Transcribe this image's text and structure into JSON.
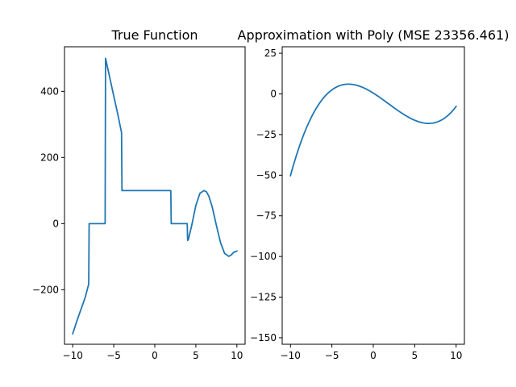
{
  "line_color": "#1f77b4",
  "chart_data": [
    {
      "type": "line",
      "title": "True Function",
      "xlim": [
        -11,
        11
      ],
      "ylim": [
        -365,
        535
      ],
      "xticks": [
        -10,
        -5,
        0,
        5,
        10
      ],
      "xtick_labels": [
        "−10",
        "−5",
        "0",
        "5",
        "10"
      ],
      "yticks": [
        -200,
        0,
        200,
        400
      ],
      "ytick_labels": [
        "−200",
        "0",
        "200",
        "400"
      ],
      "grid": false,
      "series": [
        {
          "x": [
            -10,
            -9.5,
            -9,
            -8.5,
            -8.05,
            -8.0,
            -7.5,
            -7,
            -6.5,
            -6.05,
            -6.0,
            -5.5,
            -5,
            -4.5,
            -4.05,
            -4.0,
            -3,
            -2,
            -1,
            0,
            1,
            1.95,
            2.0,
            2.5,
            3,
            3.5,
            3.95,
            4.0,
            4.1,
            4.5,
            5,
            5.5,
            6,
            6.3,
            6.6,
            7,
            7.5,
            8,
            8.5,
            9,
            9.3,
            9.6,
            10
          ],
          "y": [
            -333,
            -295,
            -260,
            -225,
            -183,
            0,
            0,
            0,
            0,
            0,
            500,
            443,
            386,
            330,
            275,
            100,
            100,
            100,
            100,
            100,
            100,
            100,
            0,
            0,
            0,
            0,
            0,
            -51,
            -47,
            -5,
            55,
            92,
            100,
            96,
            82,
            50,
            -5,
            -57,
            -90,
            -99,
            -95,
            -87,
            -83
          ]
        }
      ]
    },
    {
      "type": "line",
      "title": "Approximation with Poly (MSE 23356.461)",
      "xlim": [
        -11,
        11
      ],
      "ylim": [
        -154,
        29
      ],
      "xticks": [
        -10,
        -5,
        0,
        5,
        10
      ],
      "xtick_labels": [
        "−10",
        "−5",
        "0",
        "5",
        "10"
      ],
      "yticks": [
        -150,
        -125,
        -100,
        -75,
        -50,
        -25,
        0,
        25
      ],
      "ytick_labels": [
        "−150",
        "−125",
        "−100",
        "−75",
        "−50",
        "−25",
        "0",
        "25"
      ],
      "grid": false,
      "series": [
        {
          "poly_coefficients": [
            0.0533,
            -0.2948,
            -3.2,
            0.5
          ],
          "x_range": [
            -10,
            10
          ]
        }
      ]
    }
  ],
  "titles": {
    "left": "True Function",
    "right": "Approximation with Poly (MSE 23356.461)"
  }
}
